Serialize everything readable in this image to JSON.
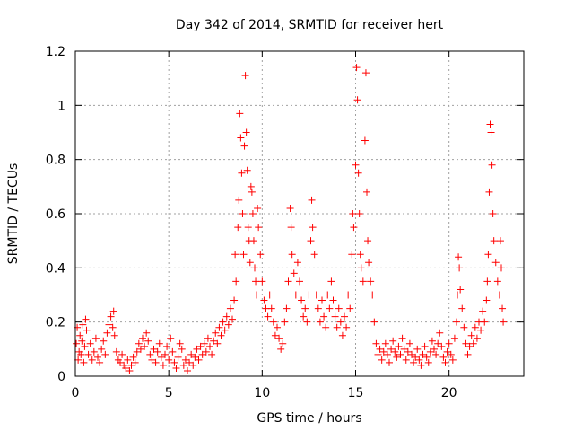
{
  "chart_data": {
    "type": "scatter",
    "title": "Day 342 of 2014, SRMTID for receiver hert",
    "xlabel": "GPS time / hours",
    "ylabel": "SRMTID / TECUs",
    "xlim": [
      0,
      24
    ],
    "ylim": [
      0,
      1.2
    ],
    "xticks": [
      0,
      5,
      10,
      15,
      20
    ],
    "xtick_labels": [
      "0",
      "5",
      "10",
      "15",
      "20"
    ],
    "yticks": [
      0,
      0.2,
      0.4,
      0.6,
      0.8,
      1,
      1.2
    ],
    "ytick_labels": [
      "0",
      "0.2",
      "0.4",
      "0.6",
      "0.8",
      "1",
      "1.2"
    ],
    "grid": true,
    "marker": "+",
    "series": [
      {
        "name": "SRMTID",
        "color": "#ff0000",
        "points": [
          [
            0.05,
            0.12
          ],
          [
            0.1,
            0.18
          ],
          [
            0.15,
            0.06
          ],
          [
            0.2,
            0.09
          ],
          [
            0.25,
            0.15
          ],
          [
            0.3,
            0.08
          ],
          [
            0.35,
            0.13
          ],
          [
            0.4,
            0.19
          ],
          [
            0.45,
            0.05
          ],
          [
            0.5,
            0.11
          ],
          [
            0.55,
            0.21
          ],
          [
            0.6,
            0.17
          ],
          [
            0.7,
            0.08
          ],
          [
            0.8,
            0.12
          ],
          [
            0.9,
            0.06
          ],
          [
            1.0,
            0.09
          ],
          [
            1.1,
            0.14
          ],
          [
            1.2,
            0.07
          ],
          [
            1.3,
            0.05
          ],
          [
            1.4,
            0.1
          ],
          [
            1.5,
            0.13
          ],
          [
            1.6,
            0.08
          ],
          [
            1.7,
            0.16
          ],
          [
            1.8,
            0.19
          ],
          [
            1.9,
            0.22
          ],
          [
            2.0,
            0.18
          ],
          [
            2.05,
            0.24
          ],
          [
            2.1,
            0.15
          ],
          [
            2.2,
            0.09
          ],
          [
            2.3,
            0.06
          ],
          [
            2.4,
            0.05
          ],
          [
            2.5,
            0.08
          ],
          [
            2.6,
            0.04
          ],
          [
            2.7,
            0.03
          ],
          [
            2.8,
            0.06
          ],
          [
            2.9,
            0.02
          ],
          [
            3.0,
            0.04
          ],
          [
            3.1,
            0.07
          ],
          [
            3.2,
            0.05
          ],
          [
            3.3,
            0.09
          ],
          [
            3.4,
            0.12
          ],
          [
            3.5,
            0.1
          ],
          [
            3.6,
            0.14
          ],
          [
            3.7,
            0.11
          ],
          [
            3.8,
            0.16
          ],
          [
            3.9,
            0.13
          ],
          [
            4.0,
            0.08
          ],
          [
            4.1,
            0.06
          ],
          [
            4.2,
            0.1
          ],
          [
            4.3,
            0.05
          ],
          [
            4.4,
            0.09
          ],
          [
            4.5,
            0.12
          ],
          [
            4.6,
            0.07
          ],
          [
            4.7,
            0.04
          ],
          [
            4.8,
            0.08
          ],
          [
            4.9,
            0.11
          ],
          [
            5.0,
            0.06
          ],
          [
            5.1,
            0.14
          ],
          [
            5.2,
            0.09
          ],
          [
            5.3,
            0.05
          ],
          [
            5.4,
            0.03
          ],
          [
            5.5,
            0.07
          ],
          [
            5.6,
            0.12
          ],
          [
            5.7,
            0.1
          ],
          [
            5.8,
            0.04
          ],
          [
            5.9,
            0.06
          ],
          [
            6.0,
            0.02
          ],
          [
            6.1,
            0.05
          ],
          [
            6.2,
            0.08
          ],
          [
            6.3,
            0.04
          ],
          [
            6.4,
            0.07
          ],
          [
            6.5,
            0.1
          ],
          [
            6.6,
            0.06
          ],
          [
            6.7,
            0.11
          ],
          [
            6.8,
            0.08
          ],
          [
            6.9,
            0.12
          ],
          [
            7.0,
            0.09
          ],
          [
            7.1,
            0.14
          ],
          [
            7.2,
            0.11
          ],
          [
            7.3,
            0.08
          ],
          [
            7.4,
            0.13
          ],
          [
            7.5,
            0.16
          ],
          [
            7.6,
            0.12
          ],
          [
            7.7,
            0.18
          ],
          [
            7.8,
            0.15
          ],
          [
            7.9,
            0.2
          ],
          [
            8.0,
            0.17
          ],
          [
            8.1,
            0.22
          ],
          [
            8.2,
            0.19
          ],
          [
            8.3,
            0.25
          ],
          [
            8.4,
            0.21
          ],
          [
            8.5,
            0.28
          ],
          [
            8.55,
            0.45
          ],
          [
            8.6,
            0.35
          ],
          [
            8.7,
            0.55
          ],
          [
            8.75,
            0.65
          ],
          [
            8.8,
            0.97
          ],
          [
            8.85,
            0.88
          ],
          [
            8.9,
            0.75
          ],
          [
            8.95,
            0.6
          ],
          [
            9.0,
            0.45
          ],
          [
            9.05,
            0.85
          ],
          [
            9.1,
            1.11
          ],
          [
            9.15,
            0.9
          ],
          [
            9.2,
            0.76
          ],
          [
            9.25,
            0.55
          ],
          [
            9.3,
            0.5
          ],
          [
            9.35,
            0.42
          ],
          [
            9.4,
            0.7
          ],
          [
            9.45,
            0.68
          ],
          [
            9.5,
            0.6
          ],
          [
            9.55,
            0.5
          ],
          [
            9.6,
            0.4
          ],
          [
            9.65,
            0.35
          ],
          [
            9.7,
            0.3
          ],
          [
            9.75,
            0.62
          ],
          [
            9.8,
            0.55
          ],
          [
            9.9,
            0.45
          ],
          [
            10.0,
            0.35
          ],
          [
            10.1,
            0.28
          ],
          [
            10.2,
            0.25
          ],
          [
            10.3,
            0.22
          ],
          [
            10.4,
            0.3
          ],
          [
            10.5,
            0.25
          ],
          [
            10.6,
            0.2
          ],
          [
            10.7,
            0.15
          ],
          [
            10.8,
            0.18
          ],
          [
            10.9,
            0.14
          ],
          [
            11.0,
            0.1
          ],
          [
            11.1,
            0.12
          ],
          [
            11.2,
            0.2
          ],
          [
            11.3,
            0.25
          ],
          [
            11.4,
            0.35
          ],
          [
            11.5,
            0.62
          ],
          [
            11.55,
            0.55
          ],
          [
            11.6,
            0.45
          ],
          [
            11.7,
            0.38
          ],
          [
            11.8,
            0.3
          ],
          [
            11.9,
            0.42
          ],
          [
            12.0,
            0.35
          ],
          [
            12.1,
            0.28
          ],
          [
            12.2,
            0.22
          ],
          [
            12.3,
            0.25
          ],
          [
            12.4,
            0.2
          ],
          [
            12.5,
            0.3
          ],
          [
            12.6,
            0.5
          ],
          [
            12.65,
            0.65
          ],
          [
            12.7,
            0.55
          ],
          [
            12.8,
            0.45
          ],
          [
            12.9,
            0.3
          ],
          [
            13.0,
            0.25
          ],
          [
            13.1,
            0.2
          ],
          [
            13.2,
            0.28
          ],
          [
            13.3,
            0.22
          ],
          [
            13.4,
            0.18
          ],
          [
            13.5,
            0.3
          ],
          [
            13.6,
            0.25
          ],
          [
            13.7,
            0.35
          ],
          [
            13.8,
            0.28
          ],
          [
            13.9,
            0.22
          ],
          [
            14.0,
            0.18
          ],
          [
            14.1,
            0.25
          ],
          [
            14.2,
            0.2
          ],
          [
            14.3,
            0.15
          ],
          [
            14.4,
            0.22
          ],
          [
            14.5,
            0.18
          ],
          [
            14.6,
            0.3
          ],
          [
            14.7,
            0.25
          ],
          [
            14.8,
            0.45
          ],
          [
            14.85,
            0.6
          ],
          [
            14.9,
            0.55
          ],
          [
            15.0,
            0.78
          ],
          [
            15.05,
            1.14
          ],
          [
            15.1,
            1.02
          ],
          [
            15.15,
            0.75
          ],
          [
            15.2,
            0.6
          ],
          [
            15.25,
            0.45
          ],
          [
            15.3,
            0.4
          ],
          [
            15.4,
            0.35
          ],
          [
            15.5,
            0.87
          ],
          [
            15.55,
            1.12
          ],
          [
            15.6,
            0.68
          ],
          [
            15.65,
            0.5
          ],
          [
            15.7,
            0.42
          ],
          [
            15.8,
            0.35
          ],
          [
            15.9,
            0.3
          ],
          [
            16.0,
            0.2
          ],
          [
            16.1,
            0.12
          ],
          [
            16.2,
            0.08
          ],
          [
            16.3,
            0.1
          ],
          [
            16.4,
            0.06
          ],
          [
            16.5,
            0.09
          ],
          [
            16.6,
            0.12
          ],
          [
            16.7,
            0.08
          ],
          [
            16.8,
            0.05
          ],
          [
            16.9,
            0.1
          ],
          [
            17.0,
            0.13
          ],
          [
            17.1,
            0.09
          ],
          [
            17.2,
            0.07
          ],
          [
            17.3,
            0.11
          ],
          [
            17.4,
            0.08
          ],
          [
            17.5,
            0.14
          ],
          [
            17.6,
            0.1
          ],
          [
            17.7,
            0.06
          ],
          [
            17.8,
            0.09
          ],
          [
            17.9,
            0.12
          ],
          [
            18.0,
            0.08
          ],
          [
            18.1,
            0.05
          ],
          [
            18.2,
            0.07
          ],
          [
            18.3,
            0.1
          ],
          [
            18.4,
            0.06
          ],
          [
            18.5,
            0.04
          ],
          [
            18.6,
            0.08
          ],
          [
            18.7,
            0.11
          ],
          [
            18.8,
            0.07
          ],
          [
            18.9,
            0.05
          ],
          [
            19.0,
            0.09
          ],
          [
            19.1,
            0.13
          ],
          [
            19.2,
            0.1
          ],
          [
            19.3,
            0.08
          ],
          [
            19.4,
            0.12
          ],
          [
            19.5,
            0.16
          ],
          [
            19.6,
            0.11
          ],
          [
            19.7,
            0.07
          ],
          [
            19.8,
            0.05
          ],
          [
            19.9,
            0.09
          ],
          [
            20.0,
            0.12
          ],
          [
            20.1,
            0.08
          ],
          [
            20.2,
            0.06
          ],
          [
            20.3,
            0.14
          ],
          [
            20.4,
            0.2
          ],
          [
            20.45,
            0.3
          ],
          [
            20.5,
            0.44
          ],
          [
            20.55,
            0.4
          ],
          [
            20.6,
            0.32
          ],
          [
            20.7,
            0.25
          ],
          [
            20.8,
            0.18
          ],
          [
            20.9,
            0.12
          ],
          [
            21.0,
            0.08
          ],
          [
            21.1,
            0.11
          ],
          [
            21.2,
            0.15
          ],
          [
            21.3,
            0.12
          ],
          [
            21.4,
            0.18
          ],
          [
            21.5,
            0.14
          ],
          [
            21.6,
            0.2
          ],
          [
            21.7,
            0.17
          ],
          [
            21.8,
            0.24
          ],
          [
            21.9,
            0.2
          ],
          [
            22.0,
            0.28
          ],
          [
            22.05,
            0.35
          ],
          [
            22.1,
            0.45
          ],
          [
            22.15,
            0.68
          ],
          [
            22.2,
            0.93
          ],
          [
            22.25,
            0.9
          ],
          [
            22.3,
            0.78
          ],
          [
            22.35,
            0.6
          ],
          [
            22.4,
            0.5
          ],
          [
            22.5,
            0.42
          ],
          [
            22.6,
            0.35
          ],
          [
            22.7,
            0.3
          ],
          [
            22.75,
            0.5
          ],
          [
            22.8,
            0.4
          ],
          [
            22.85,
            0.25
          ],
          [
            22.9,
            0.2
          ]
        ]
      }
    ]
  }
}
